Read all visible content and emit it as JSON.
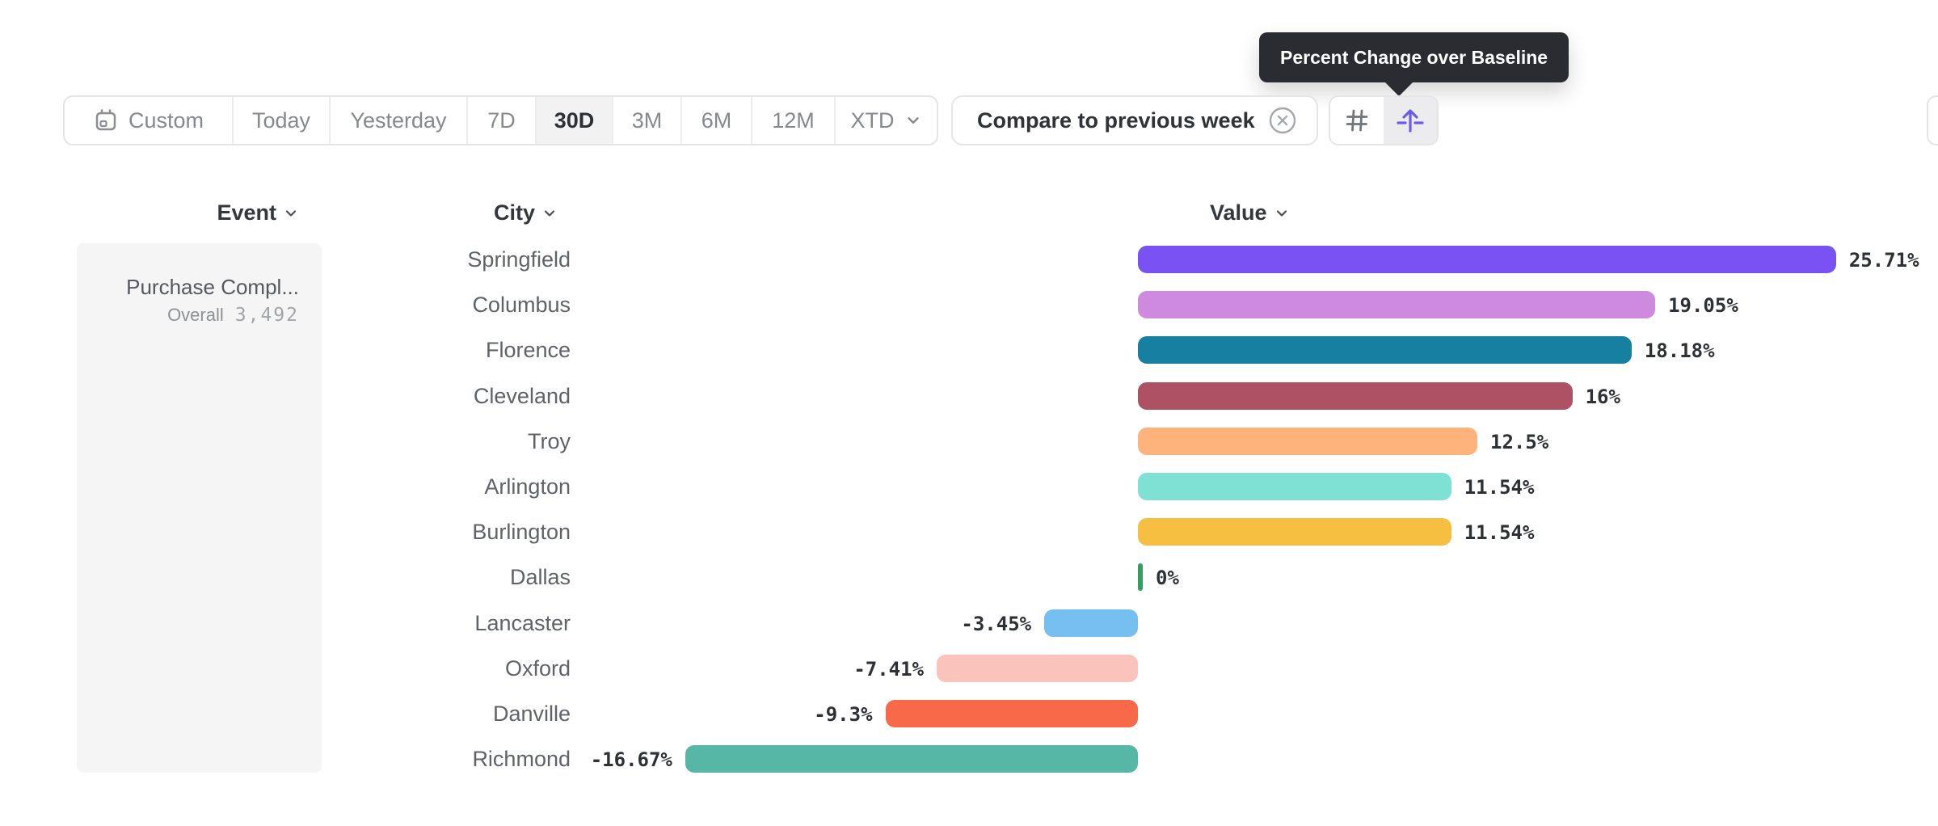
{
  "toolbar": {
    "date_ranges": [
      {
        "label": "Custom",
        "icon": "calendar",
        "selected": false,
        "chevron": false
      },
      {
        "label": "Today",
        "selected": false,
        "chevron": false
      },
      {
        "label": "Yesterday",
        "selected": false,
        "chevron": false
      },
      {
        "label": "7D",
        "selected": false,
        "chevron": false
      },
      {
        "label": "30D",
        "selected": true,
        "chevron": false
      },
      {
        "label": "3M",
        "selected": false,
        "chevron": false
      },
      {
        "label": "6M",
        "selected": false,
        "chevron": false
      },
      {
        "label": "12M",
        "selected": false,
        "chevron": false
      },
      {
        "label": "XTD",
        "selected": false,
        "chevron": true
      }
    ],
    "compare_chip": {
      "label": "Compare to previous week",
      "close_icon": "circle-x-icon"
    },
    "view_toggle": [
      {
        "name": "grid-view",
        "icon": "grid-icon",
        "selected": false
      },
      {
        "name": "baseline-view",
        "icon": "baseline-arrow-icon",
        "selected": true,
        "accent_color": "#6c59f0"
      }
    ]
  },
  "tooltip": {
    "text": "Percent Change over Baseline"
  },
  "columns": {
    "event": "Event",
    "city": "City",
    "value": "Value"
  },
  "event_panel": {
    "event_name": "Purchase Compl...",
    "metric_label": "Overall",
    "metric_value": "3,492"
  },
  "chart_data": {
    "type": "bar",
    "orientation": "horizontal",
    "title": "Percent Change over Baseline",
    "xlabel": "Value",
    "ylabel": "City",
    "xlim": [
      -16.67,
      25.71
    ],
    "grid": false,
    "categories": [
      "Springfield",
      "Columbus",
      "Florence",
      "Cleveland",
      "Troy",
      "Arlington",
      "Burlington",
      "Dallas",
      "Lancaster",
      "Oxford",
      "Danville",
      "Richmond"
    ],
    "values": [
      25.71,
      19.05,
      18.18,
      16,
      12.5,
      11.54,
      11.54,
      0,
      -3.45,
      -7.41,
      -9.3,
      -16.67
    ],
    "value_labels": [
      "25.71%",
      "19.05%",
      "18.18%",
      "16%",
      "12.5%",
      "11.54%",
      "11.54%",
      "0%",
      "-3.45%",
      "-7.41%",
      "-9.3%",
      "-16.67%"
    ],
    "colors": [
      "#7a52f4",
      "#ce8adf",
      "#177f9f",
      "#ae5165",
      "#fdb379",
      "#7fe1d3",
      "#f6bf41",
      "#2fa05e",
      "#76c0f1",
      "#fac3bb",
      "#f8694a",
      "#56b7a7"
    ]
  }
}
